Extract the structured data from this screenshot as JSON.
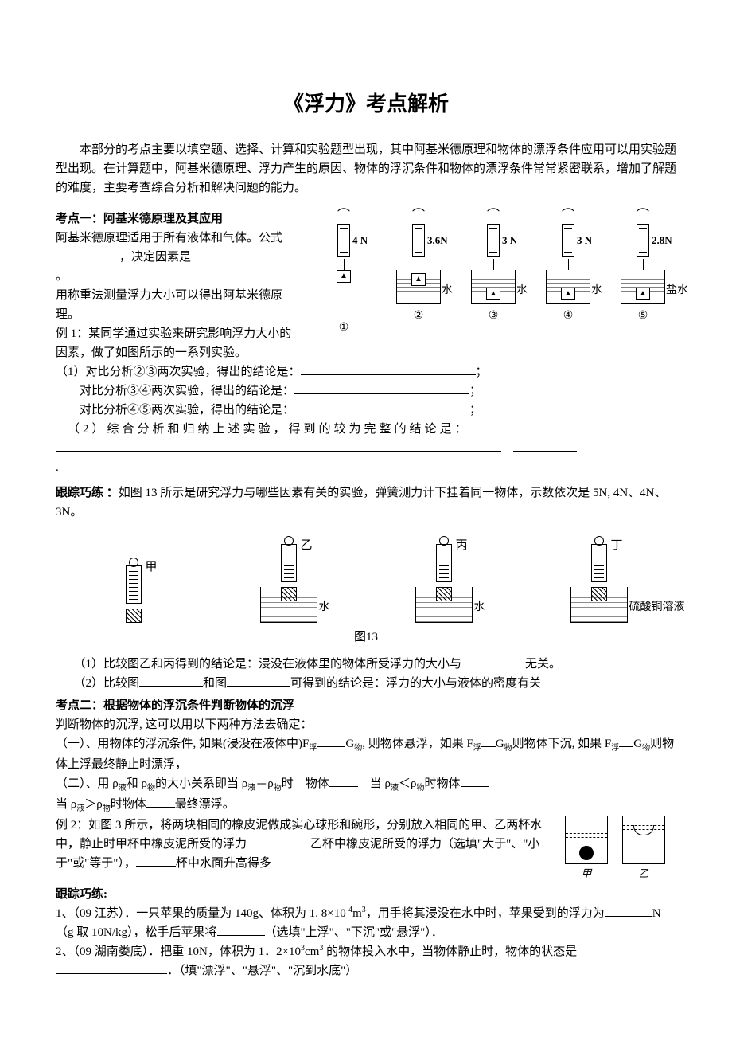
{
  "title": "《浮力》考点解析",
  "intro": "本部分的考点主要以填空题、选择、计算和实验题型出现，其中阿基米德原理和物体的漂浮条件应用可以用实验题型出现。在计算题中，阿基米德原理、浮力产生的原因、物体的浮沉条件和物体的漂浮条件常常紧密联系，增加了解题的难度，主要考查综合分析和解决问题的能力。",
  "kp1": {
    "head": "考点一：阿基米德原理及其应用",
    "line1a": "阿基米德原理适用于所有液体和气体。公式",
    "line1b": "，决定因素是",
    "line_period": "。",
    "line2": "用称重法测量浮力大小可以得出阿基米德原理。",
    "ex1_head": "例 1：某同学通过实验来研究影响浮力大小的因素，做了如图所示的一系列实验。",
    "q1_pre": "（1）对比分析②③两次实验，得出的结论是：",
    "q1_b": "对比分析③④两次实验，得出的结论是：",
    "q1_c": "对比分析④⑤两次实验，得出的结论是：",
    "q2": "（2）综合分析和归纳上述实验，得到的较为完整的结论是：",
    "fig": {
      "readings": [
        "4 N",
        "3.6N",
        "3 N",
        "3 N",
        "2.8N"
      ],
      "liquid_labels": [
        "",
        "水",
        "水",
        "水",
        "盐水"
      ],
      "block_glyph": "▲",
      "col_nums": [
        "①",
        "②",
        "③",
        "④",
        "⑤"
      ],
      "block_positions": [
        "air",
        "high",
        "low",
        "low",
        "low"
      ]
    }
  },
  "track1": {
    "head": "跟踪巧练 ：",
    "body": "如图 13 所示是研究浮力与哪些因素有关的实验，弹簧测力计下挂着同一物体，示数依次是 5N, 4N、4N、3N。",
    "fig13": {
      "labels": [
        "甲",
        "乙",
        "丙",
        "丁"
      ],
      "liquids": [
        "",
        "水",
        "水",
        "硫酸铜溶液"
      ],
      "caption": "图13"
    },
    "q1a": "（1）比较图乙和丙得到的结论是：浸没在液体里的物体所受浮力的大小与",
    "q1b": "无关。",
    "q2a": "（2）比较图",
    "q2b": "和图",
    "q2c": "可得到的结论是：浮力的大小与液体的密度有关"
  },
  "kp2": {
    "head": "考点二：根据物体的浮沉条件判断物体的沉浮",
    "line1": "判断物体的沉浮, 这可以用以下两种方法去确定：",
    "m1a": "（一）、用物体的浮沉条件, 如果(浸没在液体中)F",
    "m1b": "G",
    "m1c": ", 则物体悬浮，如果 F",
    "m1d": "G",
    "m1e": "则物体下沉, 如果 F",
    "m1f": "G",
    "m1g": "则物体上浮最终静止时漂浮，",
    "sub_float": "浮",
    "sub_obj": "物",
    "sub_liq": "液",
    "m2a": "（二）、用 ρ",
    "m2b": "和 ρ",
    "m2c": "的大小关系即当 ρ",
    "m2d": "＝ρ",
    "m2e": "时　物体",
    "m2f": "　当 ρ",
    "m2g": "＜ρ",
    "m2h": "时物体",
    "m3a": "当 ρ",
    "m3b": "＞ρ",
    "m3c": "时物体",
    "m3d": "最终漂浮。",
    "ex2a": "例 2：如图 3 所示，将两块相同的橡皮泥做成实心球形和碗形，分别放入相同的甲、乙两杯水中，静止时甲杯中橡皮泥所受的浮力",
    "ex2b": "乙杯中橡皮泥所受的浮力（选填\"大于\"、\"小于\"或\"等于\"），",
    "ex2c": "杯中水面升高得多",
    "cup_labels": [
      "甲",
      "乙"
    ]
  },
  "track2": {
    "head": "跟踪巧练:",
    "q1a": "1、（09 江苏）．一只苹果的质量为 140g、体积为 1. 8×10",
    "q1a_exp": "-4",
    "q1a2": "m",
    "q1a_exp2": "3",
    "q1a3": "，用手将其浸没在水中时，苹果受到的浮力为",
    "q1b_g": "N（g 取 10N/kg），松手后苹果将",
    "q1c": "（选填\"上浮\"、\"下沉\"或\"悬浮\"）．",
    "q2a": "2、（09 湖南娄底）．把重 10N，体积为 1．2×10",
    "q2a_exp": "3",
    "q2a2": "cm",
    "q2a_exp2": "3",
    "q2a3": " 的物体投入水中，当物体静止时，物体的状态是",
    "q2b": "．（填\"漂浮\"、\"悬浮\"、\"沉到水底\"）"
  }
}
